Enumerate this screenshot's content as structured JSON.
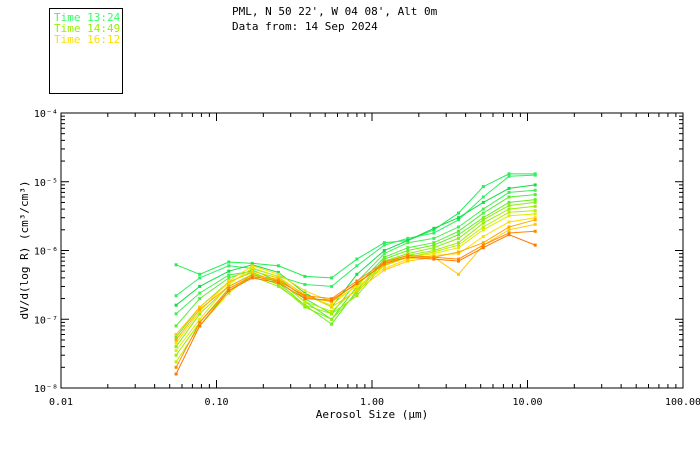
{
  "header": {
    "line1": "PML, N 50 22', W 04 08', Alt 0m",
    "line2": "Data from: 14 Sep 2024"
  },
  "legend": [
    {
      "label": "Time 13:24",
      "color": "#33ff66"
    },
    {
      "label": "Time 14:49",
      "color": "#99ee00"
    },
    {
      "label": "Time 16:12",
      "color": "#ffdd00"
    }
  ],
  "chart_data": {
    "type": "line",
    "xlabel": "Aerosol Size (µm)",
    "ylabel": "dV/d(log R) (cm³/cm³)",
    "x_scale": "log",
    "y_scale": "log",
    "xlim": [
      0.01,
      100
    ],
    "ylim": [
      1e-08,
      0.0001
    ],
    "x_ticks": [
      {
        "value": 0.01,
        "label": "0.01"
      },
      {
        "value": 0.1,
        "label": "0.10"
      },
      {
        "value": 1,
        "label": "1.00"
      },
      {
        "value": 10,
        "label": "10.00"
      },
      {
        "value": 100,
        "label": "100.00"
      }
    ],
    "y_ticks": [
      {
        "value": 1e-08,
        "label": "10⁻⁸"
      },
      {
        "value": 1e-07,
        "label": "10⁻⁷"
      },
      {
        "value": 1e-06,
        "label": "10⁻⁶"
      },
      {
        "value": 1e-05,
        "label": "10⁻⁵"
      },
      {
        "value": 0.0001,
        "label": "10⁻⁴"
      }
    ],
    "grid": false,
    "x": [
      0.055,
      0.078,
      0.12,
      0.17,
      0.25,
      0.37,
      0.55,
      0.8,
      1.2,
      1.7,
      2.5,
      3.6,
      5.2,
      7.6,
      11.2
    ],
    "series": [
      {
        "color": "#22ee55",
        "values": [
          6.2e-07,
          4.5e-07,
          6.8e-07,
          6.5e-07,
          6e-07,
          4.2e-07,
          4e-07,
          7.5e-07,
          1.3e-06,
          1.4e-06,
          2e-06,
          3.5e-06,
          8.5e-06,
          1.3e-05,
          1.3e-05
        ]
      },
      {
        "color": "#33ee66",
        "values": [
          2.2e-07,
          4e-07,
          6e-07,
          5.5e-07,
          4.2e-07,
          3.2e-07,
          3e-07,
          6e-07,
          1.2e-06,
          1.5e-06,
          1.8e-06,
          2.8e-06,
          6e-06,
          1.2e-05,
          1.25e-05
        ]
      },
      {
        "color": "#11dd44",
        "values": [
          1.6e-07,
          3e-07,
          5e-07,
          6.2e-07,
          4.8e-07,
          2.4e-07,
          1.5e-07,
          4.5e-07,
          1e-06,
          1.4e-06,
          2.1e-06,
          3e-06,
          5e-06,
          8e-06,
          9e-06
        ]
      },
      {
        "color": "#44ee55",
        "values": [
          1.2e-07,
          2.4e-07,
          4.4e-07,
          5e-07,
          4e-07,
          2e-07,
          1.2e-07,
          3.5e-07,
          9e-07,
          1.3e-06,
          1.5e-06,
          2.2e-06,
          4e-06,
          7e-06,
          7.5e-06
        ]
      },
      {
        "color": "#55ee33",
        "values": [
          8e-08,
          2e-07,
          4e-07,
          5.2e-07,
          3.6e-07,
          1.8e-07,
          1e-07,
          3e-07,
          8e-07,
          1.1e-06,
          1.3e-06,
          1.9e-06,
          3.5e-06,
          6e-06,
          6.5e-06
        ]
      },
      {
        "color": "#66ee22",
        "values": [
          5.5e-08,
          1.5e-07,
          3.5e-07,
          4.8e-07,
          3.4e-07,
          1.6e-07,
          8.5e-08,
          2.6e-07,
          7.5e-07,
          1e-06,
          1.2e-06,
          1.7e-06,
          3e-06,
          5e-06,
          5.5e-06
        ]
      },
      {
        "color": "#88ee11",
        "values": [
          4e-08,
          1.2e-07,
          3e-07,
          4.5e-07,
          3.2e-07,
          1.5e-07,
          1e-07,
          2.4e-07,
          7e-07,
          9e-07,
          1.1e-06,
          1.5e-06,
          2.8e-06,
          4.5e-06,
          5e-06
        ]
      },
      {
        "color": "#99ee00",
        "values": [
          3e-08,
          9e-08,
          2.6e-07,
          4.2e-07,
          3e-07,
          1.6e-07,
          1.2e-07,
          2.2e-07,
          6.5e-07,
          8.5e-07,
          1e-06,
          1.3e-06,
          2.5e-06,
          4e-06,
          4.4e-06
        ]
      },
      {
        "color": "#bbee00",
        "values": [
          2.4e-08,
          8e-08,
          2.4e-07,
          4.6e-07,
          3.6e-07,
          1.8e-07,
          1.3e-07,
          2.8e-07,
          6e-07,
          8e-07,
          9.5e-07,
          1.2e-06,
          2.2e-06,
          3.6e-06,
          3.8e-06
        ]
      },
      {
        "color": "#ddee00",
        "values": [
          3.5e-08,
          1e-07,
          3.2e-07,
          5.6e-07,
          4.2e-07,
          2.2e-07,
          1.6e-07,
          3.2e-07,
          6.5e-07,
          8e-07,
          9e-07,
          1.1e-06,
          2e-06,
          3.2e-06,
          3.4e-06
        ]
      },
      {
        "color": "#ffdd00",
        "values": [
          4.5e-08,
          1.3e-07,
          3.6e-07,
          6e-07,
          4.5e-07,
          2.6e-07,
          1.8e-07,
          3e-07,
          5.5e-07,
          7.5e-07,
          8.5e-07,
          9e-07,
          1.6e-06,
          2.6e-06,
          3e-06
        ]
      },
      {
        "color": "#ffcc00",
        "values": [
          6e-08,
          1.5e-07,
          3.4e-07,
          5e-07,
          4e-07,
          2.3e-07,
          1.5e-07,
          2.6e-07,
          5.2e-07,
          7e-07,
          8e-07,
          4.5e-07,
          1.2e-06,
          2e-06,
          2.4e-06
        ]
      },
      {
        "color": "#ffaa00",
        "values": [
          5e-08,
          1.4e-07,
          3e-07,
          4.4e-07,
          3.8e-07,
          2.1e-07,
          1.8e-07,
          3.4e-07,
          6.2e-07,
          8e-07,
          8e-07,
          9.5e-07,
          1.3e-06,
          2.2e-06,
          2.8e-06
        ]
      },
      {
        "color": "#ff8800",
        "values": [
          2e-08,
          9e-08,
          2.8e-07,
          4.2e-07,
          3.6e-07,
          2.2e-07,
          2e-07,
          3.6e-07,
          6.8e-07,
          8.5e-07,
          8e-07,
          7.5e-07,
          1.2e-06,
          1.8e-06,
          1.9e-06
        ]
      },
      {
        "color": "#ff7700",
        "values": [
          1.6e-08,
          8e-08,
          2.6e-07,
          4e-07,
          3.4e-07,
          2e-07,
          1.9e-07,
          3.3e-07,
          6.5e-07,
          8e-07,
          7.5e-07,
          7e-07,
          1.1e-06,
          1.7e-06,
          1.2e-06
        ]
      }
    ]
  }
}
